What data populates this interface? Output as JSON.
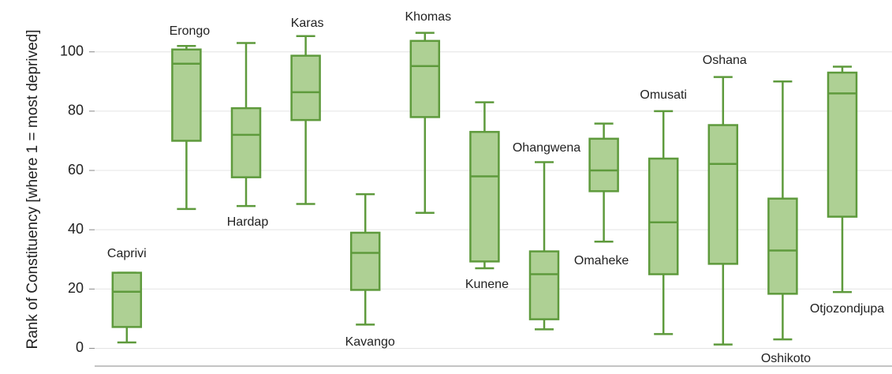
{
  "chart_data": {
    "type": "box",
    "y_label": "Rank of Constituency [where 1 = most deprived]",
    "categories": [
      "Caprivi",
      "Erongo",
      "Hardap",
      "Karas",
      "Kavango",
      "Khomas",
      "Kunene",
      "Ohangwena",
      "Omaheke",
      "Omusati",
      "Oshana",
      "Oshikoto",
      "Otjozondjupa"
    ],
    "min": [
      2,
      47,
      48,
      48.7,
      8,
      45.7,
      27,
      6.4,
      36,
      4.8,
      1.3,
      3,
      19
    ],
    "q1": [
      7.2,
      70,
      57.7,
      77,
      19.7,
      78,
      29.3,
      9.8,
      53,
      25,
      28.5,
      18.4,
      44.4
    ],
    "median": [
      19.1,
      96,
      72,
      86.4,
      32.2,
      95.2,
      58,
      25,
      60,
      42.5,
      62.2,
      33,
      86
    ],
    "q3": [
      25.5,
      100.8,
      81,
      98.7,
      39,
      103.7,
      73,
      32.7,
      70.7,
      64,
      75.3,
      50.5,
      93
    ],
    "max": [
      25.5,
      102,
      103,
      105.3,
      52,
      106.4,
      83,
      62.8,
      75.8,
      80,
      91.5,
      90,
      95
    ],
    "color": "#aed094",
    "edge_color": "#5e9a3c",
    "ylim": [
      -6,
      113.5
    ],
    "yticks": [
      0,
      20,
      40,
      60,
      80,
      100
    ],
    "grid": true
  }
}
